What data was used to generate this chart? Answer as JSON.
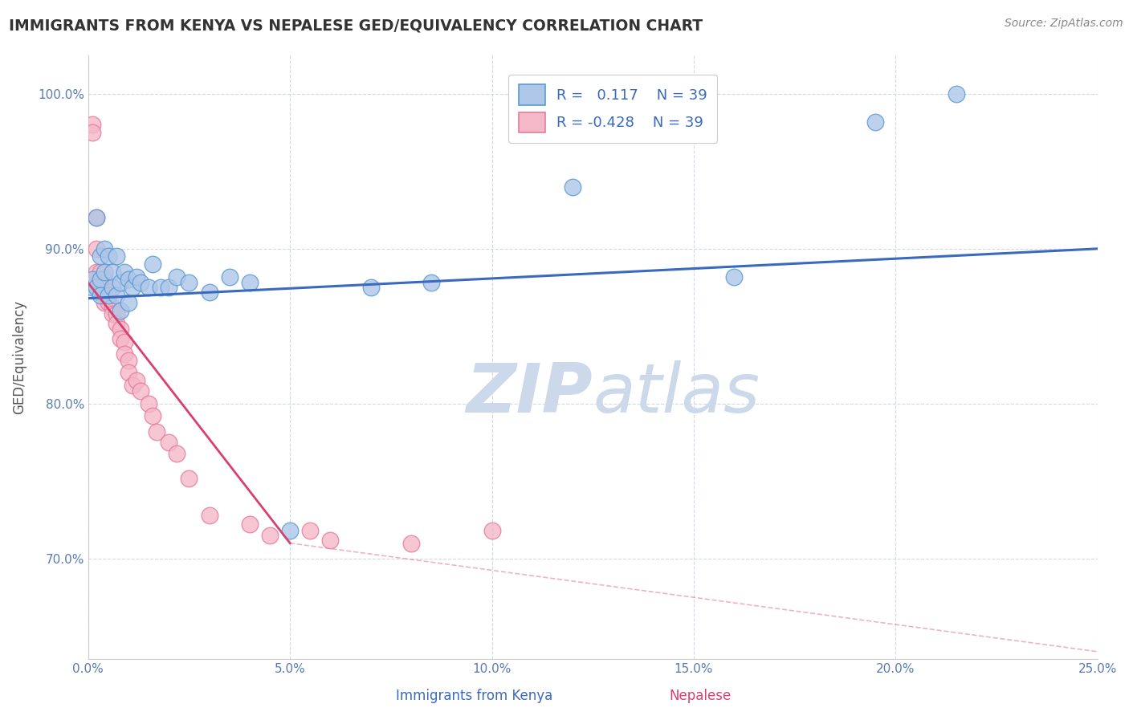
{
  "title": "IMMIGRANTS FROM KENYA VS NEPALESE GED/EQUIVALENCY CORRELATION CHART",
  "source_text": "Source: ZipAtlas.com",
  "xlabel_blue": "Immigrants from Kenya",
  "xlabel_pink": "Nepalese",
  "ylabel": "GED/Equivalency",
  "xlim": [
    0.0,
    0.25
  ],
  "ylim": [
    0.635,
    1.025
  ],
  "xticks": [
    0.0,
    0.05,
    0.1,
    0.15,
    0.2,
    0.25
  ],
  "xtick_labels": [
    "0.0%",
    "5.0%",
    "10.0%",
    "15.0%",
    "20.0%",
    "25.0%"
  ],
  "yticks": [
    0.7,
    0.8,
    0.9,
    1.0
  ],
  "ytick_labels": [
    "70.0%",
    "80.0%",
    "90.0%",
    "100.0%"
  ],
  "R_blue": 0.117,
  "R_pink": -0.428,
  "N_blue": 39,
  "N_pink": 39,
  "blue_color": "#aec6e8",
  "blue_edge": "#5a9ad4",
  "pink_color": "#f4b8c8",
  "pink_edge": "#e87a9a",
  "blue_line_color": "#3a6abf",
  "pink_line_color": "#d94070",
  "watermark_color": "#ccd9ea",
  "background_color": "#ffffff",
  "grid_color": "#d0dae5",
  "blue_scatter_x": [
    0.001,
    0.001,
    0.002,
    0.002,
    0.003,
    0.003,
    0.003,
    0.004,
    0.004,
    0.005,
    0.005,
    0.006,
    0.006,
    0.007,
    0.007,
    0.008,
    0.008,
    0.009,
    0.01,
    0.01,
    0.011,
    0.012,
    0.013,
    0.015,
    0.016,
    0.018,
    0.02,
    0.022,
    0.025,
    0.03,
    0.035,
    0.04,
    0.05,
    0.07,
    0.085,
    0.12,
    0.16,
    0.195,
    0.215
  ],
  "blue_scatter_y": [
    0.875,
    0.88,
    0.92,
    0.875,
    0.895,
    0.88,
    0.87,
    0.9,
    0.885,
    0.895,
    0.87,
    0.885,
    0.875,
    0.895,
    0.87,
    0.878,
    0.86,
    0.885,
    0.88,
    0.865,
    0.875,
    0.882,
    0.878,
    0.875,
    0.89,
    0.875,
    0.875,
    0.882,
    0.878,
    0.872,
    0.882,
    0.878,
    0.718,
    0.875,
    0.878,
    0.94,
    0.882,
    0.982,
    1.0
  ],
  "pink_scatter_x": [
    0.001,
    0.001,
    0.002,
    0.002,
    0.002,
    0.003,
    0.003,
    0.003,
    0.004,
    0.004,
    0.004,
    0.005,
    0.005,
    0.006,
    0.006,
    0.007,
    0.007,
    0.008,
    0.008,
    0.009,
    0.009,
    0.01,
    0.01,
    0.011,
    0.012,
    0.013,
    0.015,
    0.016,
    0.017,
    0.02,
    0.022,
    0.025,
    0.03,
    0.04,
    0.045,
    0.055,
    0.06,
    0.08,
    0.1
  ],
  "pink_scatter_y": [
    0.98,
    0.975,
    0.92,
    0.9,
    0.885,
    0.885,
    0.878,
    0.872,
    0.88,
    0.872,
    0.865,
    0.872,
    0.865,
    0.862,
    0.858,
    0.858,
    0.852,
    0.848,
    0.842,
    0.84,
    0.832,
    0.828,
    0.82,
    0.812,
    0.815,
    0.808,
    0.8,
    0.792,
    0.782,
    0.775,
    0.768,
    0.752,
    0.728,
    0.722,
    0.715,
    0.718,
    0.712,
    0.71,
    0.718
  ],
  "blue_line_x": [
    0.0,
    0.25
  ],
  "blue_line_y": [
    0.868,
    0.9
  ],
  "pink_line_x": [
    0.0,
    0.05
  ],
  "pink_line_y": [
    0.878,
    0.71
  ],
  "ref_line_x": [
    0.05,
    0.25
  ],
  "ref_line_y": [
    0.71,
    0.64
  ]
}
